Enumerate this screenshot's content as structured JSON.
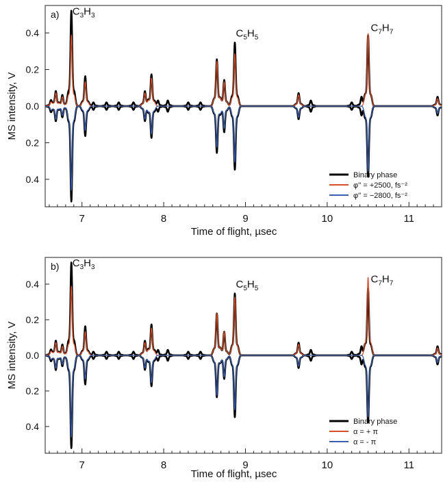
{
  "chart_data": [
    {
      "type": "line",
      "panel_label": "a)",
      "xlabel": "Time of flight, µsec",
      "ylabel": "MS intensity, V",
      "xlim": [
        6.55,
        11.4
      ],
      "ylim": [
        -0.55,
        0.55
      ],
      "x_ticks": [
        "7",
        "8",
        "9",
        "10",
        "11"
      ],
      "y_ticks": [
        "0.4",
        "0.2",
        "0.0",
        "0.2",
        "0.4"
      ],
      "y_tick_values": [
        0.4,
        0.2,
        0.0,
        -0.2,
        -0.4
      ],
      "annotations": [
        {
          "base": "C",
          "n1": "3",
          "h": "H",
          "n2": "3",
          "x": 6.95,
          "y": 0.5
        },
        {
          "base": "C",
          "n1": "5",
          "h": "H",
          "n2": "5",
          "x": 8.95,
          "y": 0.38
        },
        {
          "base": "C",
          "n1": "7",
          "h": "H",
          "n2": "7",
          "x": 10.6,
          "y": 0.41
        }
      ],
      "legend": {
        "placement": "bottom-right"
      },
      "series": [
        {
          "name": "Binary phase",
          "color": "#000000",
          "direction": "both",
          "width": 2.6,
          "peaks": [
            [
              6.62,
              0.03
            ],
            [
              6.68,
              0.08
            ],
            [
              6.76,
              0.06
            ],
            [
              6.87,
              0.51
            ],
            [
              7.04,
              0.16
            ],
            [
              7.14,
              0.02
            ],
            [
              7.3,
              0.02
            ],
            [
              7.45,
              0.02
            ],
            [
              7.63,
              0.02
            ],
            [
              7.77,
              0.08
            ],
            [
              7.85,
              0.17
            ],
            [
              7.93,
              0.03
            ],
            [
              8.05,
              0.03
            ],
            [
              8.3,
              0.02
            ],
            [
              8.45,
              0.02
            ],
            [
              8.65,
              0.25
            ],
            [
              8.74,
              0.14
            ],
            [
              8.87,
              0.34
            ],
            [
              9.65,
              0.07
            ],
            [
              9.8,
              0.03
            ],
            [
              10.3,
              0.02
            ],
            [
              10.42,
              0.05
            ],
            [
              10.5,
              0.38
            ],
            [
              11.35,
              0.05
            ]
          ]
        },
        {
          "name": "φ'' = +2500, fs⁻²",
          "color": "#d8502a",
          "direction": "up",
          "width": 1.3,
          "peaks": [
            [
              6.62,
              0.02
            ],
            [
              6.68,
              0.07
            ],
            [
              6.76,
              0.05
            ],
            [
              6.87,
              0.38
            ],
            [
              7.04,
              0.13
            ],
            [
              7.77,
              0.07
            ],
            [
              7.85,
              0.15
            ],
            [
              8.65,
              0.24
            ],
            [
              8.74,
              0.13
            ],
            [
              8.87,
              0.28
            ],
            [
              9.65,
              0.06
            ],
            [
              10.5,
              0.39
            ],
            [
              11.35,
              0.04
            ]
          ]
        },
        {
          "name": "φ'' = −2800, fs⁻²",
          "color": "#3a5fb0",
          "direction": "down",
          "width": 1.3,
          "peaks": [
            [
              6.62,
              0.02
            ],
            [
              6.68,
              0.07
            ],
            [
              6.76,
              0.05
            ],
            [
              6.87,
              0.45
            ],
            [
              7.04,
              0.13
            ],
            [
              7.77,
              0.07
            ],
            [
              7.85,
              0.15
            ],
            [
              8.65,
              0.22
            ],
            [
              8.74,
              0.12
            ],
            [
              8.87,
              0.3
            ],
            [
              9.65,
              0.06
            ],
            [
              10.5,
              0.35
            ],
            [
              11.35,
              0.04
            ]
          ]
        }
      ]
    },
    {
      "type": "line",
      "panel_label": "b)",
      "xlabel": "Time of flight, µsec",
      "ylabel": "MS intensity, V",
      "xlim": [
        6.55,
        11.4
      ],
      "ylim": [
        -0.55,
        0.55
      ],
      "x_ticks": [
        "7",
        "8",
        "9",
        "10",
        "11"
      ],
      "y_ticks": [
        "0.4",
        "0.2",
        "0.0",
        "0.2",
        "0.4"
      ],
      "y_tick_values": [
        0.4,
        0.2,
        0.0,
        -0.2,
        -0.4
      ],
      "annotations": [
        {
          "base": "C",
          "n1": "3",
          "h": "H",
          "n2": "3",
          "x": 6.95,
          "y": 0.5
        },
        {
          "base": "C",
          "n1": "5",
          "h": "H",
          "n2": "5",
          "x": 8.95,
          "y": 0.38
        },
        {
          "base": "C",
          "n1": "7",
          "h": "H",
          "n2": "7",
          "x": 10.6,
          "y": 0.41
        }
      ],
      "legend": {
        "placement": "bottom-right"
      },
      "series": [
        {
          "name": "Binary phase",
          "color": "#000000",
          "direction": "both",
          "width": 2.6,
          "peaks": [
            [
              6.62,
              0.03
            ],
            [
              6.68,
              0.08
            ],
            [
              6.76,
              0.06
            ],
            [
              6.87,
              0.51
            ],
            [
              7.04,
              0.16
            ],
            [
              7.14,
              0.02
            ],
            [
              7.3,
              0.02
            ],
            [
              7.45,
              0.02
            ],
            [
              7.63,
              0.02
            ],
            [
              7.77,
              0.08
            ],
            [
              7.85,
              0.17
            ],
            [
              7.93,
              0.03
            ],
            [
              8.05,
              0.03
            ],
            [
              8.3,
              0.02
            ],
            [
              8.45,
              0.02
            ],
            [
              8.65,
              0.23
            ],
            [
              8.74,
              0.13
            ],
            [
              8.87,
              0.34
            ],
            [
              9.65,
              0.07
            ],
            [
              9.8,
              0.03
            ],
            [
              10.3,
              0.02
            ],
            [
              10.42,
              0.05
            ],
            [
              10.5,
              0.37
            ],
            [
              11.35,
              0.05
            ]
          ]
        },
        {
          "name": "α = + π",
          "color": "#d8502a",
          "direction": "up",
          "width": 1.3,
          "peaks": [
            [
              6.62,
              0.02
            ],
            [
              6.68,
              0.07
            ],
            [
              6.76,
              0.05
            ],
            [
              6.87,
              0.38
            ],
            [
              7.04,
              0.13
            ],
            [
              7.77,
              0.07
            ],
            [
              7.85,
              0.15
            ],
            [
              8.65,
              0.23
            ],
            [
              8.74,
              0.13
            ],
            [
              8.87,
              0.32
            ],
            [
              9.65,
              0.06
            ],
            [
              10.5,
              0.43
            ],
            [
              11.35,
              0.04
            ]
          ]
        },
        {
          "name": "α = - π",
          "color": "#3a5fb0",
          "direction": "down",
          "width": 1.3,
          "peaks": [
            [
              6.62,
              0.02
            ],
            [
              6.68,
              0.07
            ],
            [
              6.76,
              0.05
            ],
            [
              6.87,
              0.45
            ],
            [
              7.04,
              0.13
            ],
            [
              7.77,
              0.07
            ],
            [
              7.85,
              0.15
            ],
            [
              8.65,
              0.22
            ],
            [
              8.74,
              0.12
            ],
            [
              8.87,
              0.3
            ],
            [
              9.65,
              0.06
            ],
            [
              10.5,
              0.34
            ],
            [
              11.35,
              0.04
            ]
          ]
        }
      ]
    }
  ]
}
